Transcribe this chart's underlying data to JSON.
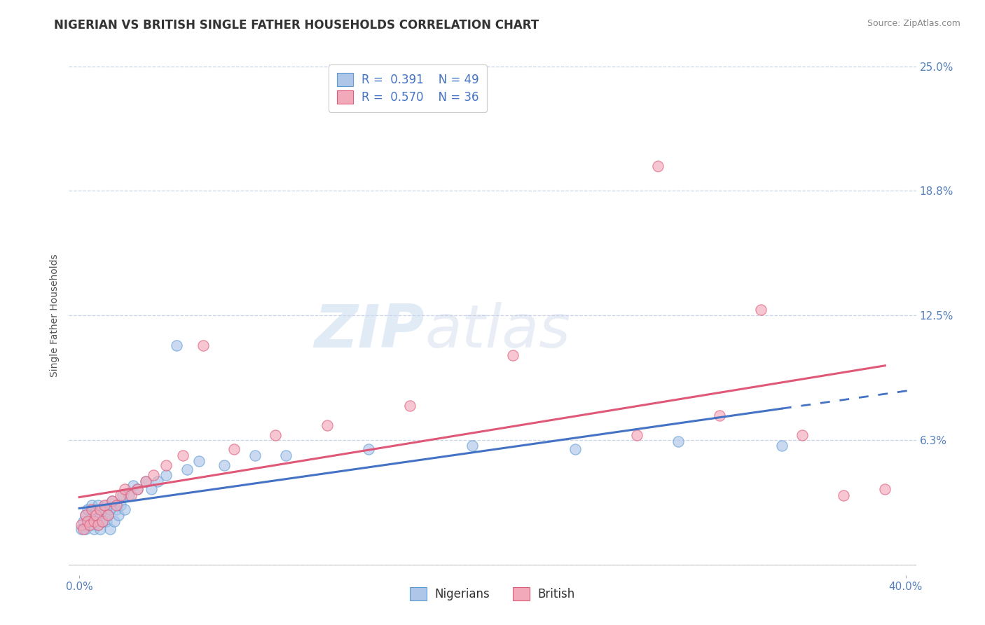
{
  "title": "NIGERIAN VS BRITISH SINGLE FATHER HOUSEHOLDS CORRELATION CHART",
  "source": "Source: ZipAtlas.com",
  "ylabel": "Single Father Households",
  "xlabel": "",
  "xlim": [
    -0.005,
    0.405
  ],
  "ylim": [
    -0.005,
    0.255
  ],
  "yticks": [
    0.0,
    0.0625,
    0.125,
    0.1875,
    0.25
  ],
  "ytick_labels": [
    "",
    "6.3%",
    "12.5%",
    "18.8%",
    "25.0%"
  ],
  "xticks": [
    0.0,
    0.4
  ],
  "xtick_labels": [
    "0.0%",
    "40.0%"
  ],
  "nigerian_fill_color": "#aec6e8",
  "british_fill_color": "#f2aaba",
  "nigerian_edge_color": "#5b9bd5",
  "british_edge_color": "#e05878",
  "nigerian_line_color": "#4472c4",
  "british_line_color": "#e05878",
  "R_nigerian": 0.391,
  "N_nigerian": 49,
  "R_british": 0.57,
  "N_british": 36,
  "nigerian_scatter_x": [
    0.001,
    0.002,
    0.003,
    0.003,
    0.004,
    0.004,
    0.005,
    0.006,
    0.006,
    0.007,
    0.007,
    0.008,
    0.008,
    0.009,
    0.009,
    0.01,
    0.01,
    0.011,
    0.012,
    0.013,
    0.013,
    0.014,
    0.015,
    0.015,
    0.016,
    0.017,
    0.018,
    0.019,
    0.02,
    0.021,
    0.022,
    0.024,
    0.026,
    0.028,
    0.032,
    0.035,
    0.038,
    0.042,
    0.047,
    0.052,
    0.058,
    0.07,
    0.085,
    0.1,
    0.14,
    0.19,
    0.24,
    0.29,
    0.34
  ],
  "nigerian_scatter_y": [
    0.018,
    0.022,
    0.018,
    0.025,
    0.02,
    0.028,
    0.022,
    0.02,
    0.03,
    0.018,
    0.025,
    0.022,
    0.028,
    0.02,
    0.03,
    0.018,
    0.025,
    0.022,
    0.028,
    0.022,
    0.03,
    0.025,
    0.028,
    0.018,
    0.032,
    0.022,
    0.028,
    0.025,
    0.03,
    0.035,
    0.028,
    0.035,
    0.04,
    0.038,
    0.042,
    0.038,
    0.042,
    0.045,
    0.11,
    0.048,
    0.052,
    0.05,
    0.055,
    0.055,
    0.058,
    0.06,
    0.058,
    0.062,
    0.06
  ],
  "british_scatter_x": [
    0.001,
    0.002,
    0.003,
    0.004,
    0.005,
    0.006,
    0.007,
    0.008,
    0.009,
    0.01,
    0.011,
    0.012,
    0.014,
    0.016,
    0.018,
    0.02,
    0.022,
    0.025,
    0.028,
    0.032,
    0.036,
    0.042,
    0.05,
    0.06,
    0.075,
    0.095,
    0.12,
    0.16,
    0.21,
    0.27,
    0.28,
    0.31,
    0.33,
    0.35,
    0.37,
    0.39
  ],
  "british_scatter_y": [
    0.02,
    0.018,
    0.025,
    0.022,
    0.02,
    0.028,
    0.022,
    0.025,
    0.02,
    0.028,
    0.022,
    0.03,
    0.025,
    0.032,
    0.03,
    0.035,
    0.038,
    0.035,
    0.038,
    0.042,
    0.045,
    0.05,
    0.055,
    0.11,
    0.058,
    0.065,
    0.07,
    0.08,
    0.105,
    0.065,
    0.2,
    0.075,
    0.128,
    0.065,
    0.035,
    0.038
  ],
  "background_color": "#ffffff",
  "grid_color": "#c8d4e8",
  "watermark_text": "ZIP",
  "watermark_text2": "atlas",
  "title_fontsize": 12,
  "axis_label_fontsize": 10,
  "tick_fontsize": 11,
  "legend_fontsize": 12
}
